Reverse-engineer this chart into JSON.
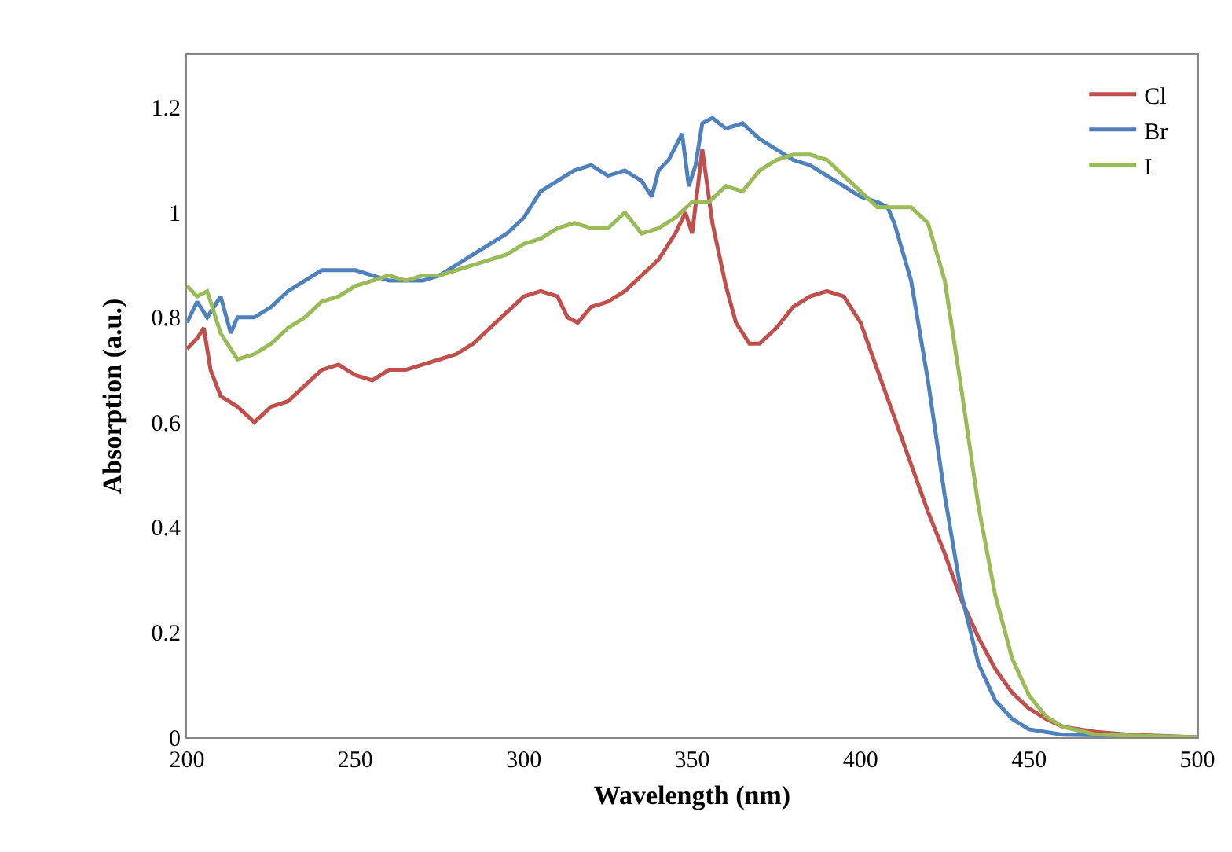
{
  "chart_data": {
    "type": "line",
    "xlabel": "Wavelength (nm)",
    "ylabel": "Absorption (a.u.)",
    "xlim": [
      200,
      500
    ],
    "xticks": [
      200,
      250,
      300,
      350,
      400,
      450,
      500
    ],
    "ylim": [
      0,
      1.3
    ],
    "yticks": [
      0,
      0.2,
      0.4,
      0.6,
      0.8,
      1,
      1.2
    ],
    "grid": false,
    "legend": "top right",
    "marker": "none",
    "line_style": "solid",
    "series": [
      {
        "name": "Cl",
        "color": "#c0504d",
        "x": [
          200,
          203,
          205,
          207,
          210,
          215,
          220,
          225,
          230,
          235,
          240,
          245,
          250,
          255,
          260,
          265,
          270,
          275,
          280,
          285,
          290,
          295,
          300,
          305,
          310,
          313,
          316,
          320,
          325,
          330,
          335,
          340,
          345,
          348,
          350,
          353,
          356,
          360,
          363,
          367,
          370,
          375,
          380,
          385,
          390,
          395,
          400,
          405,
          410,
          415,
          420,
          425,
          430,
          435,
          440,
          445,
          450,
          455,
          460,
          470,
          480,
          500
        ],
        "values": [
          0.74,
          0.76,
          0.78,
          0.7,
          0.65,
          0.63,
          0.6,
          0.63,
          0.64,
          0.67,
          0.7,
          0.71,
          0.69,
          0.68,
          0.7,
          0.7,
          0.71,
          0.72,
          0.73,
          0.75,
          0.78,
          0.81,
          0.84,
          0.85,
          0.84,
          0.8,
          0.79,
          0.82,
          0.83,
          0.85,
          0.88,
          0.91,
          0.96,
          1,
          0.96,
          1.12,
          0.98,
          0.86,
          0.79,
          0.75,
          0.75,
          0.78,
          0.82,
          0.84,
          0.85,
          0.84,
          0.79,
          0.7,
          0.61,
          0.52,
          0.43,
          0.35,
          0.26,
          0.19,
          0.13,
          0.085,
          0.055,
          0.035,
          0.02,
          0.01,
          0.005,
          0
        ]
      },
      {
        "name": "Br",
        "color": "#4f81bd",
        "x": [
          200,
          203,
          206,
          210,
          213,
          215,
          220,
          225,
          230,
          235,
          240,
          245,
          250,
          255,
          260,
          265,
          270,
          275,
          280,
          285,
          290,
          295,
          300,
          305,
          310,
          315,
          320,
          325,
          330,
          335,
          338,
          340,
          343,
          347,
          349,
          351,
          353,
          356,
          360,
          365,
          370,
          375,
          380,
          385,
          390,
          395,
          400,
          405,
          408,
          410,
          415,
          420,
          425,
          430,
          435,
          440,
          445,
          450,
          460,
          500
        ],
        "values": [
          0.79,
          0.83,
          0.8,
          0.84,
          0.77,
          0.8,
          0.8,
          0.82,
          0.85,
          0.87,
          0.89,
          0.89,
          0.89,
          0.88,
          0.87,
          0.87,
          0.87,
          0.88,
          0.9,
          0.92,
          0.94,
          0.96,
          0.99,
          1.04,
          1.06,
          1.08,
          1.09,
          1.07,
          1.08,
          1.06,
          1.03,
          1.08,
          1.1,
          1.15,
          1.05,
          1.09,
          1.17,
          1.18,
          1.16,
          1.17,
          1.14,
          1.12,
          1.1,
          1.09,
          1.07,
          1.05,
          1.03,
          1.02,
          1.01,
          0.98,
          0.87,
          0.68,
          0.46,
          0.27,
          0.14,
          0.07,
          0.035,
          0.015,
          0.005,
          0
        ]
      },
      {
        "name": "I",
        "color": "#9bbb59",
        "x": [
          200,
          203,
          206,
          210,
          215,
          220,
          225,
          230,
          235,
          240,
          245,
          250,
          255,
          260,
          265,
          270,
          275,
          280,
          285,
          290,
          295,
          300,
          305,
          310,
          315,
          320,
          325,
          330,
          335,
          340,
          345,
          350,
          355,
          360,
          365,
          370,
          375,
          380,
          385,
          390,
          395,
          400,
          405,
          410,
          415,
          420,
          425,
          430,
          435,
          440,
          445,
          450,
          455,
          460,
          470,
          500
        ],
        "values": [
          0.86,
          0.84,
          0.85,
          0.77,
          0.72,
          0.73,
          0.75,
          0.78,
          0.8,
          0.83,
          0.84,
          0.86,
          0.87,
          0.88,
          0.87,
          0.88,
          0.88,
          0.89,
          0.9,
          0.91,
          0.92,
          0.94,
          0.95,
          0.97,
          0.98,
          0.97,
          0.97,
          1,
          0.96,
          0.97,
          0.99,
          1.02,
          1.02,
          1.05,
          1.04,
          1.08,
          1.1,
          1.11,
          1.11,
          1.1,
          1.07,
          1.04,
          1.01,
          1.01,
          1.01,
          0.98,
          0.87,
          0.66,
          0.44,
          0.27,
          0.15,
          0.08,
          0.04,
          0.02,
          0.005,
          0
        ]
      }
    ]
  }
}
